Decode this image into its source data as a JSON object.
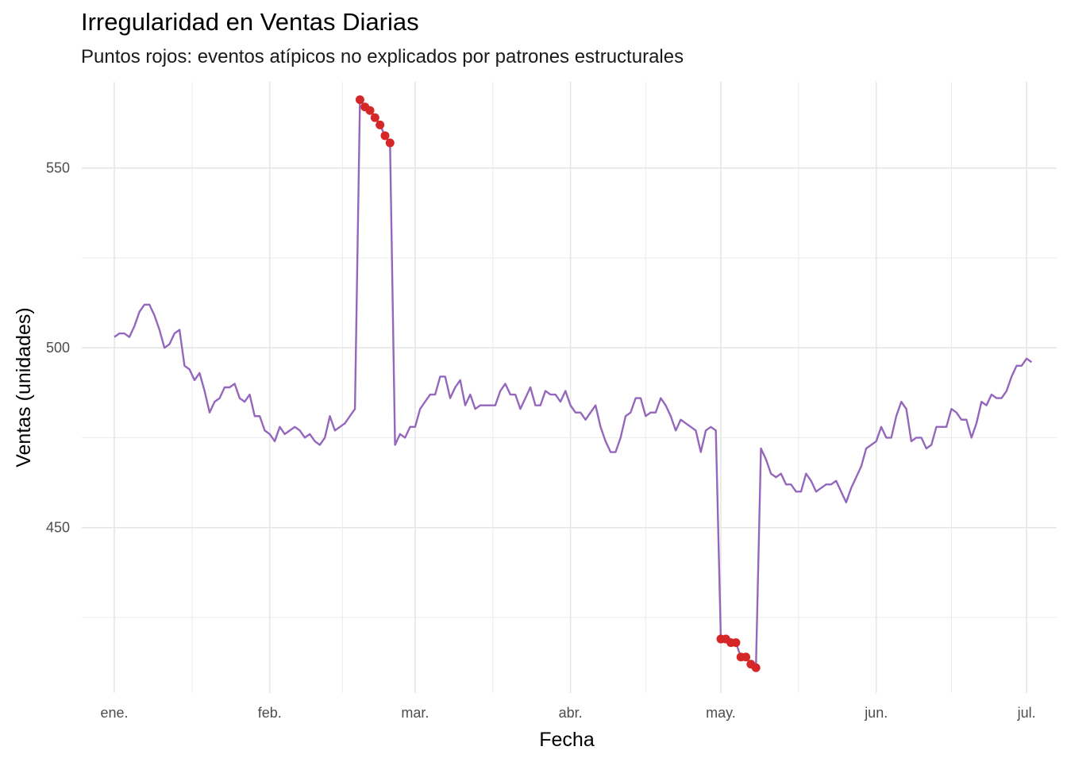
{
  "chart_data": {
    "type": "line",
    "title": "Irregularidad en Ventas Diarias",
    "subtitle": "Puntos rojos: eventos atípicos no explicados por patrones estructurales",
    "xlabel": "Fecha",
    "ylabel": "Ventas (unidades)",
    "x_start": "2024-01-01",
    "xlim_days": [
      -6.5,
      188
    ],
    "ylim": [
      404,
      574
    ],
    "y_ticks": [
      450,
      500,
      550
    ],
    "y_tick_labels": [
      "450",
      "500",
      "550"
    ],
    "x_tick_days": [
      0,
      31,
      60,
      91,
      121,
      152,
      182
    ],
    "x_tick_labels": [
      "ene.",
      "feb.",
      "mar.",
      "abr.",
      "may.",
      "jun.",
      "jul."
    ],
    "grid": true,
    "line_color": "#9467BD",
    "point_color": "#D62728",
    "series": [
      {
        "values": [
          503,
          504,
          504,
          503,
          506,
          510,
          512,
          512,
          509,
          505,
          500,
          501,
          504,
          505,
          495,
          494,
          491,
          493,
          488,
          482,
          485,
          486,
          489,
          489,
          490,
          486,
          485,
          487,
          481,
          481,
          477,
          476,
          474,
          478,
          476,
          477,
          478,
          477,
          475,
          476,
          474,
          473,
          475,
          481,
          477,
          478,
          479,
          481,
          483,
          569,
          567,
          566,
          564,
          562,
          559,
          557,
          473,
          476,
          475,
          478,
          478,
          483,
          485,
          487,
          487,
          492,
          492,
          486,
          489,
          491,
          484,
          487,
          483,
          484,
          484,
          484,
          484,
          488,
          490,
          487,
          487,
          483,
          486,
          489,
          484,
          484,
          488,
          487,
          487,
          485,
          488,
          484,
          482,
          482,
          480,
          482,
          484,
          478,
          474,
          471,
          471,
          475,
          481,
          482,
          486,
          486,
          481,
          482,
          482,
          486,
          484,
          481,
          477,
          480,
          479,
          478,
          477,
          471,
          477,
          478,
          477,
          419,
          419,
          418,
          418,
          414,
          414,
          412,
          411,
          472,
          469,
          465,
          464,
          465,
          462,
          462,
          460,
          460,
          465,
          463,
          460,
          461,
          462,
          462,
          463,
          460,
          457,
          461,
          464,
          467,
          472,
          473,
          474,
          478,
          475,
          475,
          481,
          485,
          483,
          474,
          475,
          475,
          472,
          473,
          478,
          478,
          478,
          483,
          482,
          480,
          480,
          475,
          479,
          485,
          484,
          487,
          486,
          486,
          488,
          492,
          495,
          495,
          497,
          496
        ]
      }
    ],
    "outliers": [
      {
        "day": 49,
        "value": 569
      },
      {
        "day": 50,
        "value": 567
      },
      {
        "day": 51,
        "value": 566
      },
      {
        "day": 52,
        "value": 564
      },
      {
        "day": 53,
        "value": 562
      },
      {
        "day": 54,
        "value": 559
      },
      {
        "day": 55,
        "value": 557
      },
      {
        "day": 121,
        "value": 419
      },
      {
        "day": 122,
        "value": 419
      },
      {
        "day": 123,
        "value": 418
      },
      {
        "day": 124,
        "value": 418
      },
      {
        "day": 125,
        "value": 414
      },
      {
        "day": 126,
        "value": 414
      },
      {
        "day": 127,
        "value": 412
      },
      {
        "day": 128,
        "value": 411
      }
    ]
  }
}
